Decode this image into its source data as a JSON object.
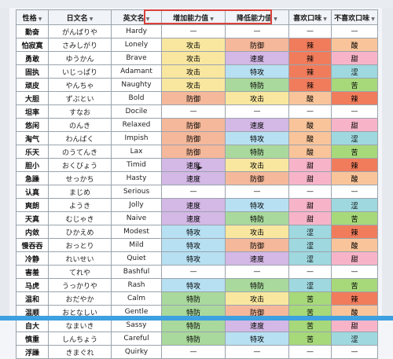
{
  "headers": [
    "性格",
    "日文名",
    "英文名",
    "增加能力值",
    "降低能力值",
    "喜欢口味",
    "不喜欢口味"
  ],
  "colors": {
    "攻击": "#f9e79f",
    "防御": "#f5b89a",
    "特攻": "#b7e0f2",
    "特防": "#a9d99c",
    "速度": "#d4b8e6",
    "辣": "#f07c5c",
    "酸": "#f9c49a",
    "甜": "#f7b4c9",
    "苦": "#a7d97a",
    "涩": "#9fd8df",
    "—": "#ffffff"
  },
  "rows": [
    {
      "cn": "勤奋",
      "ja": "がんばりや",
      "en": "Hardy",
      "up": "—",
      "down": "—",
      "like": "—",
      "dislike": "—"
    },
    {
      "cn": "怕寂寞",
      "ja": "さみしがり",
      "en": "Lonely",
      "up": "攻击",
      "down": "防御",
      "like": "辣",
      "dislike": "酸"
    },
    {
      "cn": "勇敢",
      "ja": "ゆうかん",
      "en": "Brave",
      "up": "攻击",
      "down": "速度",
      "like": "辣",
      "dislike": "甜"
    },
    {
      "cn": "固执",
      "ja": "いじっぱり",
      "en": "Adamant",
      "up": "攻击",
      "down": "特攻",
      "like": "辣",
      "dislike": "涩"
    },
    {
      "cn": "顽皮",
      "ja": "やんちゃ",
      "en": "Naughty",
      "up": "攻击",
      "down": "特防",
      "like": "辣",
      "dislike": "苦"
    },
    {
      "cn": "大胆",
      "ja": "ずぶとい",
      "en": "Bold",
      "up": "防御",
      "down": "攻击",
      "like": "酸",
      "dislike": "辣"
    },
    {
      "cn": "坦率",
      "ja": "すなお",
      "en": "Docile",
      "up": "—",
      "down": "—",
      "like": "—",
      "dislike": "—"
    },
    {
      "cn": "悠闲",
      "ja": "のんき",
      "en": "Relaxed",
      "up": "防御",
      "down": "速度",
      "like": "酸",
      "dislike": "甜"
    },
    {
      "cn": "淘气",
      "ja": "わんぱく",
      "en": "Impish",
      "up": "防御",
      "down": "特攻",
      "like": "酸",
      "dislike": "涩"
    },
    {
      "cn": "乐天",
      "ja": "のうてんき",
      "en": "Lax",
      "up": "防御",
      "down": "特防",
      "like": "酸",
      "dislike": "苦"
    },
    {
      "cn": "胆小",
      "ja": "おくびょう",
      "en": "Timid",
      "up": "速度",
      "down": "攻击",
      "like": "甜",
      "dislike": "辣"
    },
    {
      "cn": "急躁",
      "ja": "せっかち",
      "en": "Hasty",
      "up": "速度",
      "down": "防御",
      "like": "甜",
      "dislike": "酸"
    },
    {
      "cn": "认真",
      "ja": "まじめ",
      "en": "Serious",
      "up": "—",
      "down": "—",
      "like": "—",
      "dislike": "—"
    },
    {
      "cn": "爽朗",
      "ja": "ようき",
      "en": "Jolly",
      "up": "速度",
      "down": "特攻",
      "like": "甜",
      "dislike": "涩"
    },
    {
      "cn": "天真",
      "ja": "むじゃき",
      "en": "Naive",
      "up": "速度",
      "down": "特防",
      "like": "甜",
      "dislike": "苦"
    },
    {
      "cn": "内敛",
      "ja": "ひかえめ",
      "en": "Modest",
      "up": "特攻",
      "down": "攻击",
      "like": "涩",
      "dislike": "辣"
    },
    {
      "cn": "慢吞吞",
      "ja": "おっとり",
      "en": "Mild",
      "up": "特攻",
      "down": "防御",
      "like": "涩",
      "dislike": "酸"
    },
    {
      "cn": "冷静",
      "ja": "れいせい",
      "en": "Quiet",
      "up": "特攻",
      "down": "速度",
      "like": "涩",
      "dislike": "甜"
    },
    {
      "cn": "害羞",
      "ja": "てれや",
      "en": "Bashful",
      "up": "—",
      "down": "—",
      "like": "—",
      "dislike": "—"
    },
    {
      "cn": "马虎",
      "ja": "うっかりや",
      "en": "Rash",
      "up": "特攻",
      "down": "特防",
      "like": "涩",
      "dislike": "苦"
    },
    {
      "cn": "温和",
      "ja": "おだやか",
      "en": "Calm",
      "up": "特防",
      "down": "攻击",
      "like": "苦",
      "dislike": "辣"
    },
    {
      "cn": "温顺",
      "ja": "おとなしい",
      "en": "Gentle",
      "up": "特防",
      "down": "防御",
      "like": "苦",
      "dislike": "酸"
    },
    {
      "cn": "自大",
      "ja": "なまいき",
      "en": "Sassy",
      "up": "特防",
      "down": "速度",
      "like": "苦",
      "dislike": "甜"
    },
    {
      "cn": "慎重",
      "ja": "しんちょう",
      "en": "Careful",
      "up": "特防",
      "down": "特攻",
      "like": "苦",
      "dislike": "涩"
    },
    {
      "cn": "浮躁",
      "ja": "きまぐれ",
      "en": "Quirky",
      "up": "—",
      "down": "—",
      "like": "—",
      "dislike": "—"
    }
  ]
}
